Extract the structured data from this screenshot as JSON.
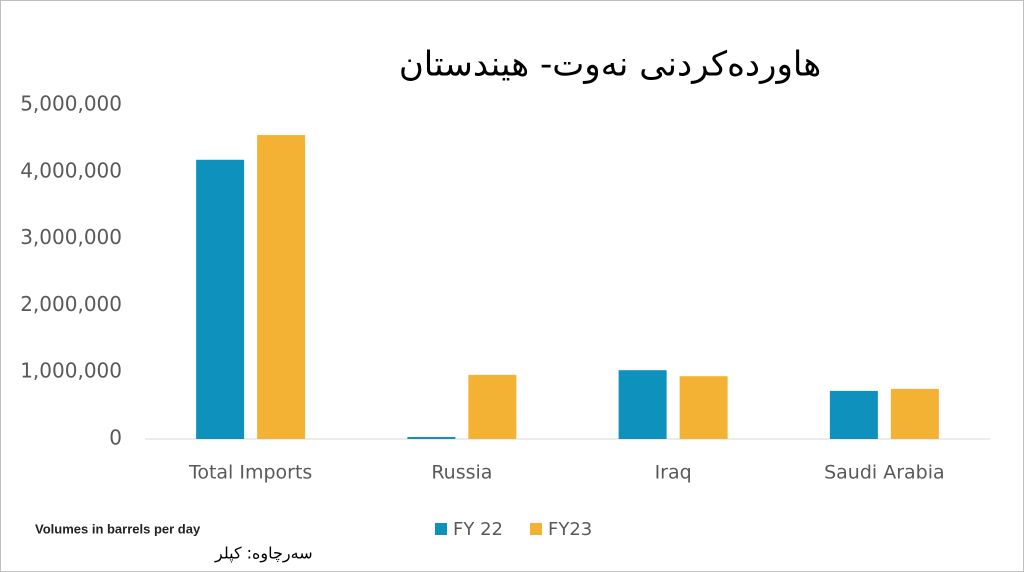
{
  "chart_data": {
    "type": "bar",
    "title": "هاوردەکردنی نەوت- هیندستان",
    "categories": [
      "Total Imports",
      "Russia",
      "Iraq",
      "Saudi Arabia"
    ],
    "series": [
      {
        "name": "FY 22",
        "color": "#0e91bd",
        "values": [
          4180000,
          30000,
          1030000,
          720000
        ]
      },
      {
        "name": "FY23",
        "color": "#f3b233",
        "values": [
          4550000,
          960000,
          940000,
          750000
        ]
      }
    ],
    "ylim": [
      0,
      5000000
    ],
    "yticks": [
      0,
      {
        "value": 1000000,
        "label": "1,000,000"
      },
      {
        "value": 2000000,
        "label": "2,000,000"
      },
      {
        "value": 3000000,
        "label": "3,000,000"
      },
      {
        "value": 4000000,
        "label": "4,000,000"
      },
      {
        "value": 5000000,
        "label": "5,000,000"
      }
    ],
    "grid": false,
    "legend": "bottom",
    "note": "Volumes in barrels per day",
    "source": "سەرچاوە: کپلر"
  }
}
